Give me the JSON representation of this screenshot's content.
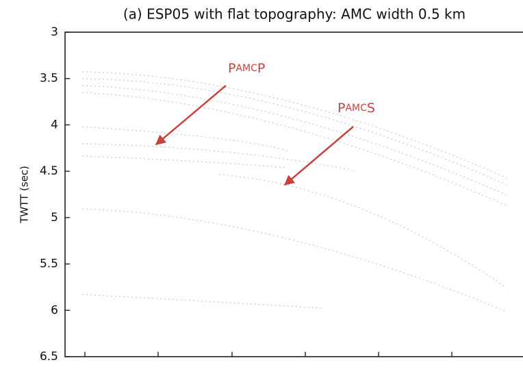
{
  "chart_data": {
    "type": "seismic",
    "title": "(a) ESP05 with flat topography: AMC width 0.5 km",
    "ylabel": "TWTT (sec)",
    "ylim": [
      3,
      6.5
    ],
    "yticks": [
      3,
      3.5,
      4,
      4.5,
      5,
      5.5,
      6,
      6.5
    ],
    "y_inverted": true,
    "annotations": [
      {
        "parts": [
          "P",
          "AMC",
          "P"
        ],
        "color": "#c8413c"
      },
      {
        "parts": [
          "P",
          "AMC",
          "S"
        ],
        "color": "#c8413c"
      }
    ]
  }
}
